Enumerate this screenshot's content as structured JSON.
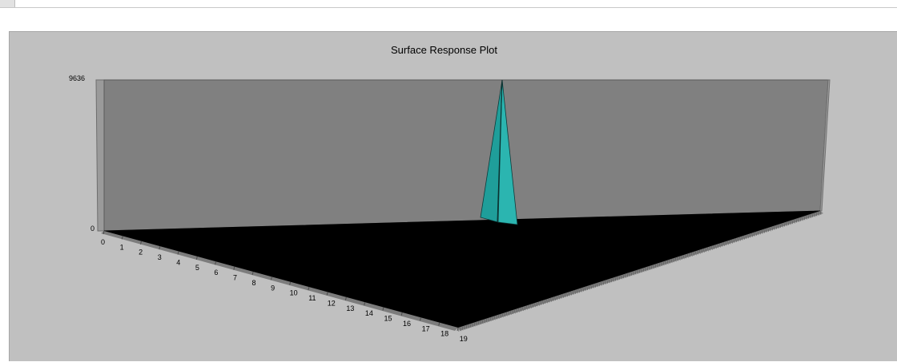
{
  "chart_data": {
    "type": "surface",
    "title": "Surface Response Plot",
    "zlim": [
      0,
      9636
    ],
    "z_ticks": [
      "9636",
      "0"
    ],
    "x_ticks": [
      "0",
      "1",
      "2",
      "3",
      "4",
      "5",
      "6",
      "7",
      "8",
      "9",
      "10",
      "11",
      "12",
      "13",
      "14",
      "15",
      "16",
      "17",
      "18",
      "19"
    ],
    "peak": {
      "value": 9636
    },
    "colors": {
      "panel_bg": "#c0c0c0",
      "back_wall": "#808080",
      "floor": "#000000",
      "peak_fill": "#1f9e9a",
      "peak_fill_light": "#2bb5b0"
    }
  }
}
